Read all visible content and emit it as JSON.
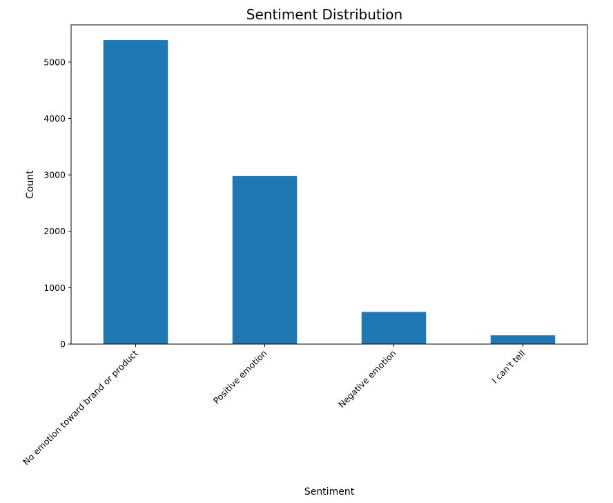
{
  "chart_data": {
    "type": "bar",
    "title": "Sentiment Distribution",
    "xlabel": "Sentiment",
    "ylabel": "Count",
    "categories": [
      "No emotion toward brand or product",
      "Positive emotion",
      "Negative emotion",
      "I can't tell"
    ],
    "values": [
      5389,
      2978,
      570,
      156
    ],
    "ylim": [
      0,
      5659
    ],
    "yticks": [
      0,
      1000,
      2000,
      3000,
      4000,
      5000
    ],
    "ytick_labels": [
      "0",
      "1000",
      "2000",
      "3000",
      "4000",
      "5000"
    ],
    "bar_color": "#1f77b4",
    "grid": false,
    "legend": false
  }
}
